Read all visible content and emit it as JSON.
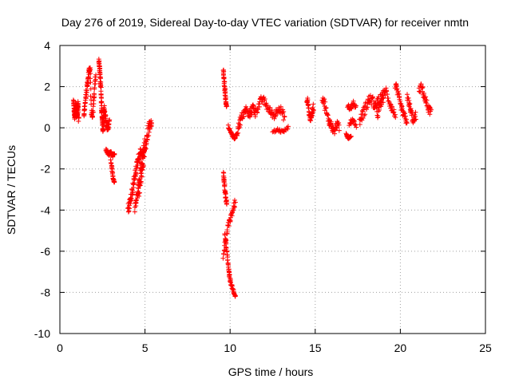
{
  "chart_data": {
    "type": "scatter",
    "title": "Day 276 of 2019, Sidereal Day-to-day VTEC variation (SDTVAR) for receiver nmtn",
    "xlabel": "GPS time / hours",
    "ylabel": "SDTVAR / TECUs",
    "xlim": [
      0,
      25
    ],
    "ylim": [
      -10,
      4
    ],
    "xticks": [
      0,
      5,
      10,
      15,
      20,
      25
    ],
    "yticks": [
      -10,
      -8,
      -6,
      -4,
      -2,
      0,
      2,
      4
    ],
    "xtick_labels": [
      "0",
      "5",
      "10",
      "15",
      "20",
      "25"
    ],
    "ytick_labels": [
      "-10",
      "-8",
      "-6",
      "-4",
      "-2",
      "0",
      "2",
      "4"
    ],
    "grid": true,
    "marker": "+",
    "color": "#ff0000",
    "series": [
      {
        "name": "SDTVAR",
        "segments": [
          {
            "x0": 0.8,
            "x1": 1.1,
            "y": [
              1.3,
              1.0,
              0.7,
              0.4,
              0.9,
              1.2,
              0.6,
              1.1,
              0.5,
              0.8,
              1.3,
              0.4
            ],
            "spread": 0.15
          },
          {
            "x0": 1.4,
            "x1": 2.1,
            "y": [
              0.6,
              1.0,
              1.5,
              2.0,
              2.4,
              2.8,
              2.9,
              0.8,
              0.5,
              1.1,
              1.8,
              2.6
            ],
            "spread": 0.15
          },
          {
            "x0": 2.3,
            "x1": 2.6,
            "y": [
              3.3,
              3.0,
              2.7,
              2.3,
              1.9,
              1.2,
              0.8,
              0.4,
              0.1,
              -0.2,
              0.6,
              1.0
            ],
            "spread": 0.12
          },
          {
            "x0": 2.6,
            "x1": 2.9,
            "y": [
              0.9,
              0.6,
              0.3,
              0.0,
              -0.1,
              0.4
            ],
            "spread": 0.1
          },
          {
            "x0": 2.7,
            "x1": 3.2,
            "y": [
              -1.1,
              -1.2,
              -1.3,
              -1.2,
              -1.4,
              -1.3
            ],
            "spread": 0.08
          },
          {
            "x0": 3.0,
            "x1": 3.2,
            "y": [
              -1.6,
              -2.0,
              -2.5,
              -2.6
            ],
            "spread": 0.05
          },
          {
            "x0": 4.0,
            "x1": 4.8,
            "y": [
              -4.0,
              -3.7,
              -3.4,
              -3.0,
              -2.6,
              -2.2,
              -1.8,
              -1.5,
              -1.2,
              -1.0
            ],
            "spread": 0.25
          },
          {
            "x0": 4.4,
            "x1": 5.4,
            "y": [
              -4.1,
              -3.6,
              -3.2,
              -2.8,
              -2.2,
              -1.6,
              -1.0,
              -0.6,
              -0.1,
              0.2,
              0.5
            ],
            "spread": 0.3
          },
          {
            "x0": 4.6,
            "x1": 5.0,
            "y": [
              -3.0,
              -2.4,
              -1.8,
              -1.2,
              -0.8
            ],
            "spread": 0.3
          },
          {
            "x0": 9.6,
            "x1": 9.8,
            "y": [
              2.8,
              2.4,
              2.0,
              1.6,
              1.2,
              1.0
            ],
            "spread": 0.05
          },
          {
            "x0": 9.6,
            "x1": 9.8,
            "y": [
              -2.2,
              -2.6,
              -3.0,
              -3.4,
              -3.7
            ],
            "spread": 0.08
          },
          {
            "x0": 9.6,
            "x1": 10.3,
            "y": [
              -6.2,
              -5.5,
              -4.8,
              -4.4,
              -4.0,
              -3.6
            ],
            "spread": 0.15
          },
          {
            "x0": 9.7,
            "x1": 10.0,
            "y": [
              -5.2,
              -5.8,
              -6.4,
              -7.0,
              -7.4
            ],
            "spread": 0.1
          },
          {
            "x0": 10.0,
            "x1": 10.3,
            "y": [
              -7.4,
              -7.7,
              -8.0,
              -8.2
            ],
            "spread": 0.08
          },
          {
            "x0": 9.9,
            "x1": 10.4,
            "y": [
              0.1,
              -0.2,
              -0.4,
              -0.5,
              -0.3
            ],
            "spread": 0.08
          },
          {
            "x0": 10.4,
            "x1": 11.5,
            "y": [
              -0.3,
              0.2,
              0.5,
              0.7,
              0.9,
              0.6,
              0.8,
              1.0,
              0.7
            ],
            "spread": 0.2
          },
          {
            "x0": 11.5,
            "x1": 13.2,
            "y": [
              0.8,
              1.1,
              1.4,
              1.2,
              0.9,
              0.7,
              0.6,
              1.0,
              0.8,
              0.5
            ],
            "spread": 0.2
          },
          {
            "x0": 12.5,
            "x1": 13.4,
            "y": [
              -0.2,
              -0.1,
              -0.2,
              0.0
            ],
            "spread": 0.08
          },
          {
            "x0": 14.5,
            "x1": 14.9,
            "y": [
              1.4,
              1.2,
              0.6,
              0.4,
              0.8,
              1.0
            ],
            "spread": 0.15
          },
          {
            "x0": 15.4,
            "x1": 16.4,
            "y": [
              1.5,
              1.2,
              0.6,
              0.3,
              0.1,
              -0.2,
              0.2,
              0.0
            ],
            "spread": 0.2
          },
          {
            "x0": 16.8,
            "x1": 17.1,
            "y": [
              -0.3,
              -0.5,
              -0.4
            ],
            "spread": 0.05
          },
          {
            "x0": 16.9,
            "x1": 17.4,
            "y": [
              1.1,
              0.9,
              1.2,
              1.0
            ],
            "spread": 0.1
          },
          {
            "x0": 17.0,
            "x1": 17.4,
            "y": [
              0.2,
              0.4,
              0.1
            ],
            "spread": 0.1
          },
          {
            "x0": 17.6,
            "x1": 19.0,
            "y": [
              0.3,
              0.6,
              0.9,
              1.2,
              1.4,
              1.3,
              1.0,
              0.7,
              1.1,
              1.5
            ],
            "spread": 0.25
          },
          {
            "x0": 18.6,
            "x1": 19.7,
            "y": [
              1.1,
              1.4,
              1.6,
              1.8,
              1.3,
              0.9,
              0.6
            ],
            "spread": 0.2
          },
          {
            "x0": 19.7,
            "x1": 20.4,
            "y": [
              2.1,
              1.7,
              1.2,
              0.8,
              0.5,
              0.3
            ],
            "spread": 0.2
          },
          {
            "x0": 20.4,
            "x1": 20.9,
            "y": [
              1.5,
              1.1,
              0.7,
              0.3,
              0.6
            ],
            "spread": 0.2
          },
          {
            "x0": 21.1,
            "x1": 21.8,
            "y": [
              1.8,
              2.0,
              1.6,
              1.2,
              0.9,
              0.8
            ],
            "spread": 0.2
          }
        ]
      }
    ]
  }
}
